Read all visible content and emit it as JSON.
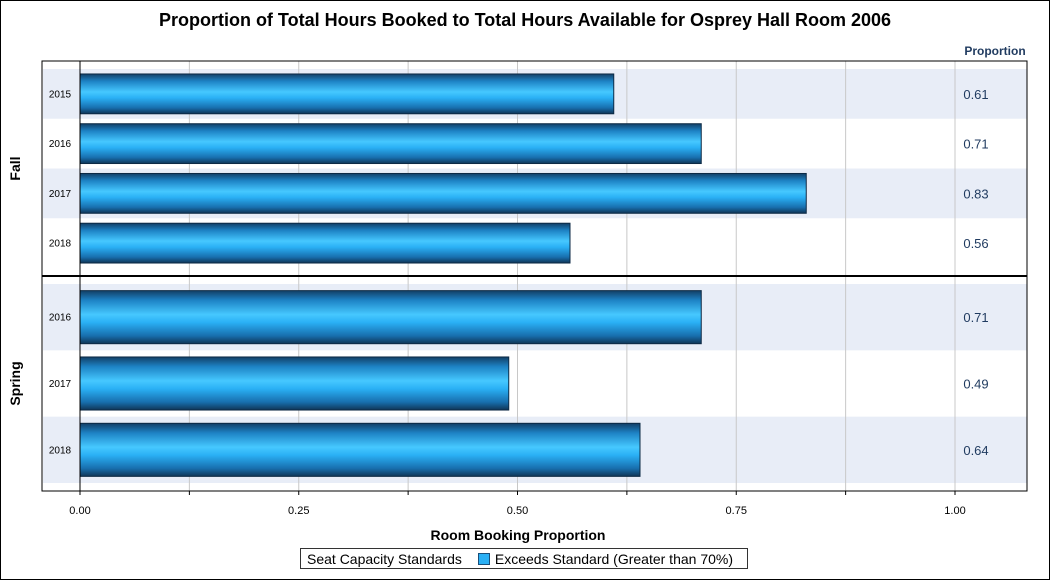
{
  "chart_data": {
    "type": "bar",
    "orientation": "horizontal",
    "title": "Proportion of Total Hours Booked to Total Hours Available for Osprey Hall Room 2006",
    "xlabel": "Room Booking Proportion",
    "value_column_header": "Proportion",
    "xlim": [
      0,
      1
    ],
    "x_ticks": [
      "0.00",
      "0.25",
      "0.50",
      "0.75",
      "1.00"
    ],
    "grid": true,
    "legend_position": "bottom",
    "legend": {
      "title": "Seat Capacity Standards",
      "entries": [
        {
          "label": "Exceeds Standard (Greater than 70%)",
          "color": "#2ab0f5"
        }
      ]
    },
    "groups": [
      {
        "name": "Fall",
        "categories": [
          "2015",
          "2016",
          "2017",
          "2018"
        ],
        "values": [
          0.61,
          0.71,
          0.83,
          0.56
        ],
        "value_labels": [
          "0.61",
          "0.71",
          "0.83",
          "0.56"
        ]
      },
      {
        "name": "Spring",
        "categories": [
          "2016",
          "2017",
          "2018"
        ],
        "values": [
          0.71,
          0.49,
          0.64
        ],
        "value_labels": [
          "0.71",
          "0.49",
          "0.64"
        ]
      }
    ],
    "colors": {
      "bar": "#2ab0f5",
      "bar_dark": "#123f66",
      "band": "#e8edf7",
      "value_text": "#1f3a5f"
    }
  }
}
